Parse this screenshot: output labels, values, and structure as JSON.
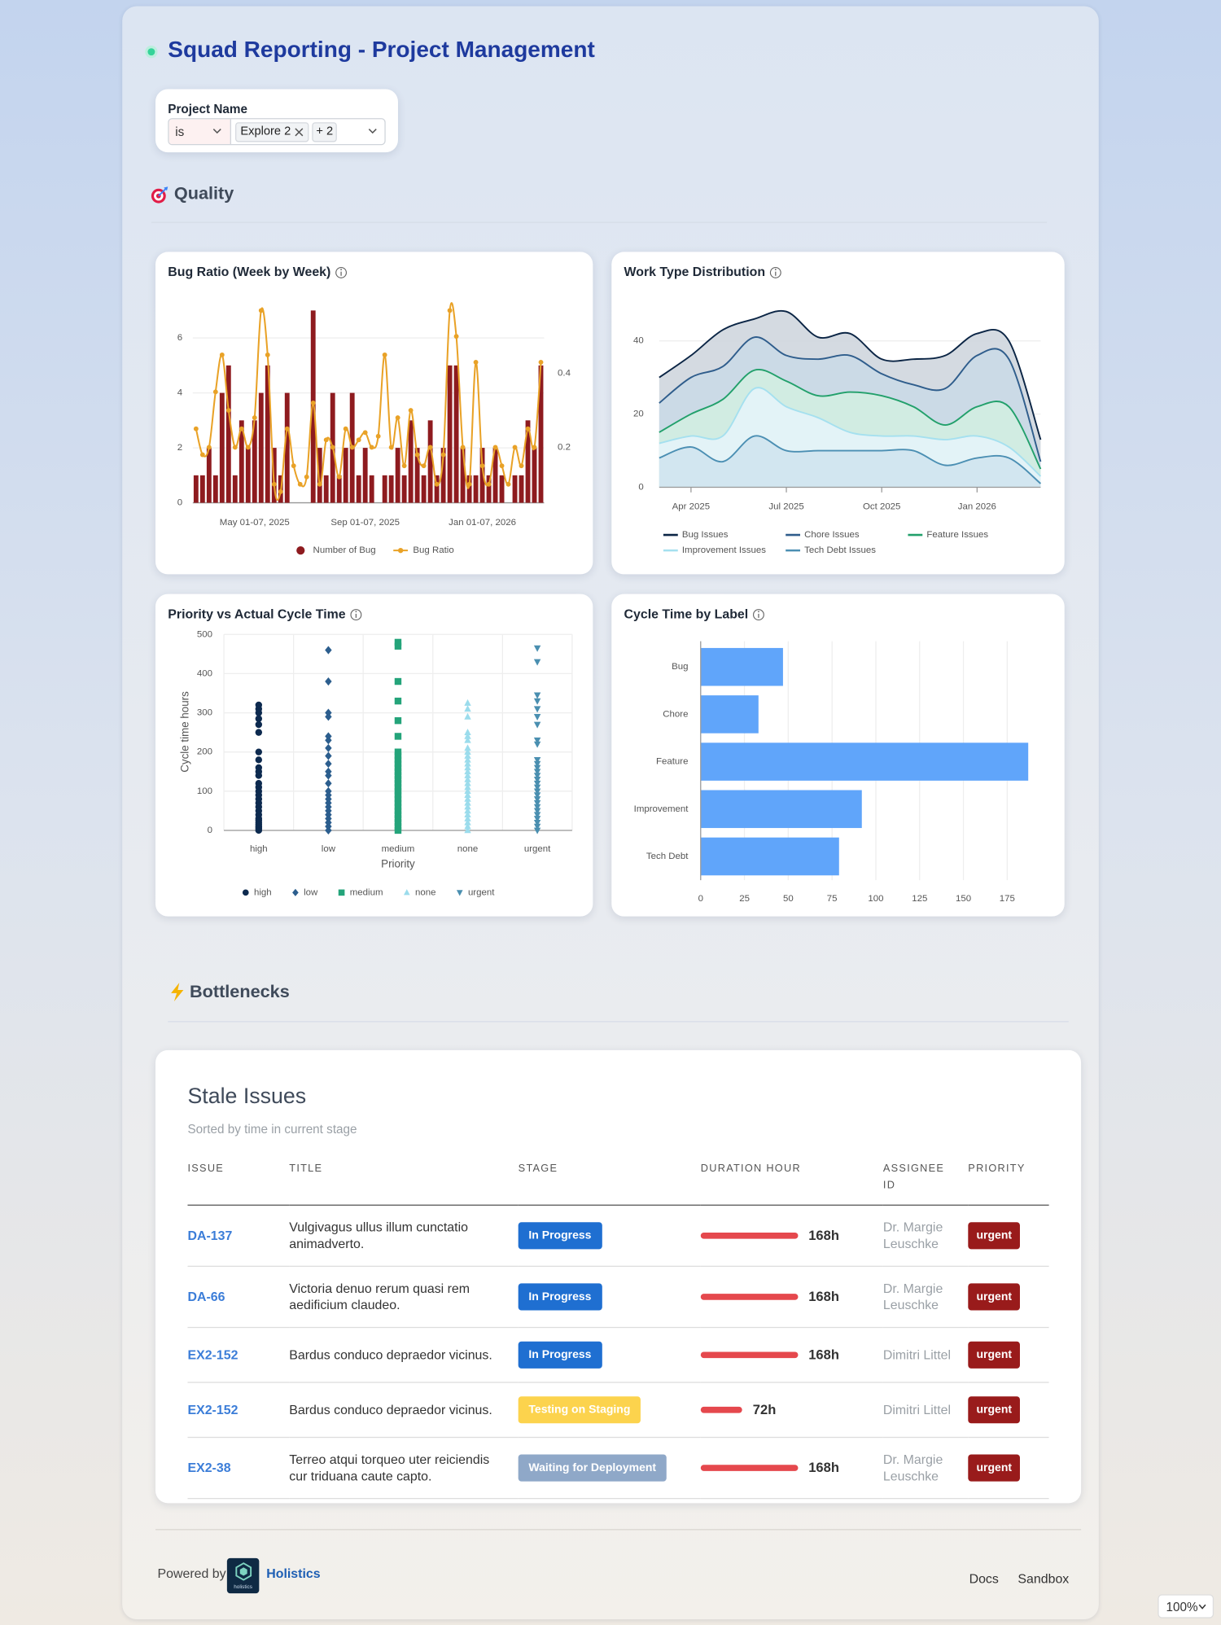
{
  "header": {
    "title": "Squad Reporting - Project Management"
  },
  "filter": {
    "label": "Project Name",
    "operator": "is",
    "chip": "Explore 2",
    "more": "+ 2"
  },
  "sections": {
    "quality": "Quality",
    "bottlenecks": "Bottlenecks"
  },
  "chart_data": [
    {
      "type": "combo",
      "title": "Bug Ratio (Week by Week)",
      "categories": [
        null,
        null,
        null,
        null,
        null,
        null,
        null,
        null,
        null,
        "May 01-07, 2025",
        null,
        null,
        null,
        null,
        null,
        null,
        null,
        null,
        null,
        null,
        null,
        null,
        null,
        null,
        null,
        null,
        "Sep 01-07, 2025",
        null,
        null,
        null,
        null,
        null,
        null,
        null,
        null,
        null,
        null,
        null,
        null,
        null,
        null,
        null,
        null,
        null,
        "Jan 01-07, 2026",
        null,
        null,
        null,
        null,
        null,
        null,
        null,
        null,
        null
      ],
      "series": [
        {
          "name": "Number of Bug",
          "type": "bar",
          "color": "#8e1b1f",
          "values": [
            1,
            1,
            2,
            1,
            4,
            5,
            1,
            3,
            2,
            3,
            4,
            5,
            2,
            1,
            4,
            0,
            0,
            0,
            7,
            2,
            1,
            4,
            1,
            2,
            4,
            1,
            2,
            1,
            0,
            1,
            1,
            2,
            1,
            3,
            2,
            1,
            3,
            1,
            2,
            5,
            5,
            2,
            1,
            1,
            2,
            1,
            2,
            1,
            0,
            1,
            1,
            3,
            2,
            5
          ]
        },
        {
          "name": "Bug Ratio",
          "type": "line",
          "axis": "y2",
          "color": "#e9a227",
          "values": [
            0.25,
            0.18,
            0.2,
            0.35,
            0.45,
            0.3,
            0.2,
            0.25,
            0.2,
            0.28,
            0.57,
            0.45,
            0.1,
            0.08,
            0.25,
            0.15,
            0.1,
            0.12,
            0.32,
            0.1,
            0.22,
            0.2,
            0.12,
            0.25,
            0.2,
            0.22,
            0.24,
            0.2,
            0.23,
            0.45,
            0.2,
            0.28,
            0.15,
            0.3,
            0.18,
            0.15,
            0.2,
            0.1,
            0.18,
            0.57,
            0.5,
            0.2,
            0.1,
            0.43,
            0.15,
            0.1,
            0.2,
            0.15,
            0.1,
            0.2,
            0.15,
            0.25,
            0.2,
            0.43
          ]
        }
      ],
      "ylim": [
        0,
        7
      ],
      "yticks": [
        0,
        2,
        4,
        6
      ],
      "y2lim": [
        0.05,
        0.57
      ],
      "y2ticks": [
        0.2,
        0.4
      ],
      "grid": true,
      "legend": "bottom"
    },
    {
      "type": "area",
      "stacked": true,
      "title": "Work Type Distribution",
      "categories": [
        null,
        "Apr 2025",
        null,
        null,
        "Jul 2025",
        null,
        null,
        "Oct 2025",
        null,
        null,
        "Jan 2026",
        null,
        null
      ],
      "series": [
        {
          "name": "Bug Issues",
          "color": "#0b2545",
          "fill_color": "#cdd3dc",
          "values": [
            7,
            6,
            10,
            5,
            12,
            6,
            6,
            4,
            7,
            9,
            6,
            5,
            6
          ]
        },
        {
          "name": "Chore Issues",
          "color": "#2f5d8c",
          "fill_color": "#c9d9e6",
          "values": [
            8,
            10,
            9,
            9,
            7,
            10,
            10,
            6,
            6,
            10,
            14,
            13,
            2
          ]
        },
        {
          "name": "Feature Issues",
          "color": "#22a06b",
          "fill_color": "#d2eee1",
          "values": [
            3,
            6,
            10,
            5,
            7,
            6,
            11,
            11,
            8,
            4,
            8,
            11,
            2
          ]
        },
        {
          "name": "Improvement Issues",
          "color": "#a5e0ef",
          "fill_color": "#e6f5fa",
          "values": [
            4,
            3,
            7,
            13,
            12,
            9,
            5,
            4,
            4,
            7,
            6,
            3,
            2
          ]
        },
        {
          "name": "Tech Debt Issues",
          "color": "#4b8fb3",
          "fill_color": "#cfe3ee",
          "values": [
            8,
            11,
            7,
            14,
            10,
            10,
            10,
            10,
            10,
            6,
            8,
            8,
            1
          ]
        }
      ],
      "ylim": [
        0,
        50
      ],
      "yticks": [
        0,
        20,
        40
      ],
      "grid": true,
      "legend": "bottom"
    },
    {
      "type": "scatter",
      "title": "Priority vs Actual Cycle Time",
      "x_label": "Priority",
      "y_label": "Cycle time hours",
      "categories": [
        "high",
        "low",
        "medium",
        "none",
        "urgent"
      ],
      "series": [
        {
          "name": "high",
          "color": "#0d2a4f",
          "marker": "circle",
          "values": [
            0,
            5,
            10,
            15,
            20,
            25,
            30,
            40,
            50,
            60,
            70,
            80,
            90,
            100,
            110,
            120,
            140,
            150,
            160,
            180,
            200,
            250,
            270,
            285,
            300,
            310,
            320
          ]
        },
        {
          "name": "low",
          "color": "#2c5e8e",
          "marker": "diamond",
          "values": [
            0,
            10,
            20,
            30,
            40,
            50,
            60,
            70,
            80,
            90,
            100,
            120,
            140,
            150,
            170,
            190,
            210,
            230,
            240,
            290,
            300,
            380,
            460
          ]
        },
        {
          "name": "medium",
          "color": "#24a47a",
          "marker": "square",
          "values": [
            0,
            10,
            20,
            30,
            40,
            50,
            60,
            70,
            80,
            90,
            100,
            110,
            120,
            130,
            140,
            150,
            160,
            170,
            180,
            190,
            200,
            240,
            280,
            330,
            380,
            470,
            480
          ]
        },
        {
          "name": "none",
          "color": "#9bdcec",
          "marker": "triangle",
          "values": [
            0,
            10,
            20,
            30,
            40,
            50,
            60,
            70,
            80,
            90,
            100,
            110,
            120,
            130,
            140,
            150,
            160,
            170,
            180,
            190,
            200,
            210,
            230,
            240,
            250,
            290,
            310,
            325
          ]
        },
        {
          "name": "urgent",
          "color": "#4a8fb0",
          "marker": "triangle-down",
          "values": [
            0,
            10,
            20,
            30,
            40,
            50,
            60,
            70,
            80,
            90,
            100,
            110,
            120,
            130,
            140,
            150,
            160,
            170,
            180,
            220,
            230,
            270,
            290,
            310,
            330,
            345,
            430,
            465
          ]
        }
      ],
      "ylim": [
        0,
        500
      ],
      "yticks": [
        0,
        100,
        200,
        300,
        400,
        500
      ],
      "grid": true,
      "legend": "bottom"
    },
    {
      "type": "hbar",
      "title": "Cycle Time by Label",
      "categories": [
        "Bug",
        "Chore",
        "Feature",
        "Improvement",
        "Tech Debt"
      ],
      "values": [
        47,
        33,
        187,
        92,
        79
      ],
      "color": "#60a5fa",
      "xlim": [
        0,
        200
      ],
      "xticks": [
        0,
        25,
        50,
        75,
        100,
        125,
        150,
        175
      ],
      "grid": true
    }
  ],
  "table": {
    "title": "Stale Issues",
    "subtitle": "Sorted by time in current stage",
    "columns": [
      "ISSUE",
      "TITLE",
      "STAGE",
      "DURATION HOUR",
      "ASSIGNEE ID",
      "PRIORITY"
    ],
    "rows": [
      {
        "issue": "DA-137",
        "title": "Vulgivagus ullus illum cunctatio animadverto.",
        "stage": "In Progress",
        "stage_color": "#1f6fd1",
        "duration": 168,
        "duration_label": "168h",
        "assignee": "Dr. Margie Leuschke",
        "priority": "urgent"
      },
      {
        "issue": "DA-66",
        "title": "Victoria denuo rerum quasi rem aedificium claudeo.",
        "stage": "In Progress",
        "stage_color": "#1f6fd1",
        "duration": 168,
        "duration_label": "168h",
        "assignee": "Dr. Margie Leuschke",
        "priority": "urgent"
      },
      {
        "issue": "EX2-152",
        "title": "Bardus conduco depraedor vicinus.",
        "stage": "In Progress",
        "stage_color": "#1f6fd1",
        "duration": 168,
        "duration_label": "168h",
        "assignee": "Dimitri Littel",
        "priority": "urgent"
      },
      {
        "issue": "EX2-152",
        "title": "Bardus conduco depraedor vicinus.",
        "stage": "Testing on Staging",
        "stage_color": "#fcd34d",
        "duration": 72,
        "duration_label": "72h",
        "assignee": "Dimitri Littel",
        "priority": "urgent"
      },
      {
        "issue": "EX2-38",
        "title": "Terreo atqui torqueo uter reiciendis cur triduana caute capto.",
        "stage": "Waiting for Deployment",
        "stage_color": "#8fa8c8",
        "duration": 168,
        "duration_label": "168h",
        "assignee": "Dr. Margie Leuschke",
        "priority": "urgent"
      }
    ]
  },
  "footer": {
    "powered_by": "Powered by",
    "logo_text": "holistics",
    "brand": "Holistics",
    "links": [
      "Docs",
      "Sandbox"
    ]
  },
  "zoom": "100%"
}
